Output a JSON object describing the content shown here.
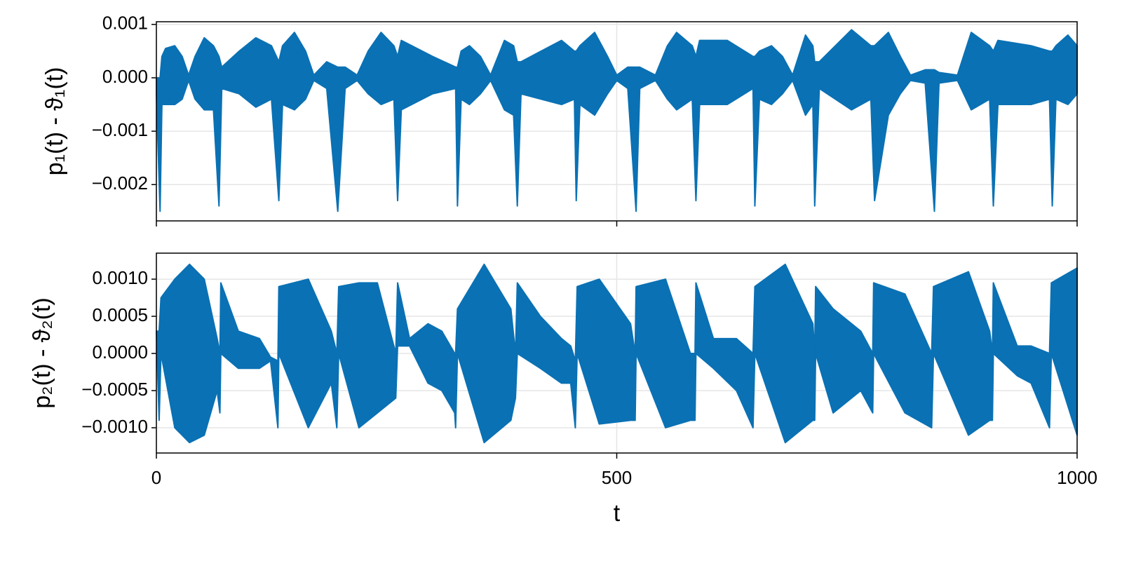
{
  "chart_data": [
    {
      "type": "band",
      "ylabel": "p₁(t) - ϑ₁(t)",
      "x": [
        0,
        4,
        6,
        10,
        20,
        28,
        35,
        42,
        52,
        62,
        68,
        71,
        90,
        108,
        125,
        133,
        137,
        150,
        162,
        171,
        185,
        197,
        205,
        218,
        230,
        244,
        258,
        262,
        266,
        300,
        325,
        327,
        331,
        340,
        352,
        363,
        378,
        388,
        392,
        396,
        440,
        454,
        456,
        460,
        476,
        490,
        500,
        512,
        521,
        525,
        542,
        555,
        565,
        582,
        586,
        590,
        620,
        648,
        650,
        655,
        668,
        680,
        691,
        705,
        713,
        715,
        720,
        755,
        776,
        780,
        795,
        808,
        819,
        835,
        845,
        850,
        870,
        885,
        905,
        909,
        914,
        950,
        970,
        973,
        977,
        990,
        1000
      ],
      "series": [
        {
          "color": "#0a71b4",
          "upper": [
            0.0,
            0.0,
            0.0004,
            0.00055,
            0.0006,
            0.0004,
            5e-05,
            0.0004,
            0.00075,
            0.0006,
            0.0004,
            0.0002,
            0.0005,
            0.00075,
            0.0006,
            0.0003,
            0.0006,
            0.00085,
            0.0005,
            5e-05,
            0.0003,
            0.0002,
            0.0002,
            5e-05,
            0.0005,
            0.00085,
            0.0006,
            0.0004,
            0.0007,
            0.0004,
            0.0002,
            0.0002,
            0.0005,
            0.0006,
            0.0004,
            5e-05,
            0.0007,
            0.0006,
            0.0003,
            0.0003,
            0.0007,
            0.0005,
            0.0005,
            0.0006,
            0.00085,
            0.0004,
            5e-05,
            0.0002,
            0.0002,
            0.0002,
            5e-05,
            0.0006,
            0.00085,
            0.0006,
            0.0004,
            0.0007,
            0.0007,
            0.0004,
            0.0004,
            0.0005,
            0.0006,
            0.0004,
            5e-05,
            0.0008,
            0.0006,
            0.0003,
            0.0003,
            0.0009,
            0.0006,
            0.0006,
            0.00085,
            0.0004,
            5e-05,
            0.00015,
            0.00015,
            0.0001,
            5e-05,
            0.00085,
            0.0006,
            0.0005,
            0.0007,
            0.0006,
            0.0005,
            0.0005,
            0.0006,
            0.0008,
            0.0006
          ],
          "lower": [
            -0.0003,
            -0.0025,
            -0.0005,
            -0.0005,
            -0.0005,
            -0.0004,
            -5e-05,
            -0.0004,
            -0.0006,
            -0.0006,
            -0.0024,
            -0.0002,
            -0.0003,
            -0.00055,
            -0.0004,
            -0.0023,
            -0.0005,
            -0.0006,
            -0.0004,
            -5e-05,
            -0.0002,
            -0.0025,
            -0.0002,
            -5e-05,
            -0.0003,
            -0.0005,
            -0.0004,
            -0.0023,
            -0.0006,
            -0.0003,
            -0.0002,
            -0.0024,
            -0.0004,
            -0.0005,
            -0.0003,
            -5e-05,
            -0.0006,
            -0.0007,
            -0.0024,
            -0.0003,
            -0.0005,
            -0.0004,
            -0.0023,
            -0.0005,
            -0.0007,
            -0.0003,
            -5e-05,
            -0.0002,
            -0.0025,
            -0.0002,
            -5e-05,
            -0.0004,
            -0.0006,
            -0.0004,
            -0.0023,
            -0.0005,
            -0.0005,
            -0.0002,
            -0.0024,
            -0.0004,
            -0.0005,
            -0.0003,
            -5e-05,
            -0.0007,
            -0.0005,
            -0.0024,
            -0.0002,
            -0.0006,
            -0.0004,
            -0.0023,
            -0.0007,
            -0.0003,
            -5e-05,
            -0.0001,
            -0.0025,
            -0.0001,
            -5e-05,
            -0.0006,
            -0.0004,
            -0.0024,
            -0.0005,
            -0.0005,
            -0.0004,
            -0.0024,
            -0.0004,
            -0.0005,
            -0.0003
          ]
        }
      ],
      "xlim": [
        0,
        1000
      ],
      "xticks": [
        0,
        500,
        1000
      ],
      "ylim": [
        -0.00268,
        0.00105
      ],
      "yticks": [
        {
          "value": 0.001,
          "label": "0.001"
        },
        {
          "value": 0,
          "label": "0.000"
        },
        {
          "value": -0.001,
          "label": "−0.001"
        },
        {
          "value": -0.002,
          "label": "−0.002"
        }
      ],
      "grid": true
    },
    {
      "type": "band",
      "ylabel": "p₂(t) - ϑ₂(t)",
      "xlabel": "t",
      "x": [
        0,
        3,
        5,
        20,
        36,
        52,
        66,
        69,
        70,
        89,
        112,
        124,
        132,
        133,
        165,
        190,
        196,
        198,
        220,
        240,
        260,
        262,
        275,
        295,
        310,
        324,
        325,
        327,
        356,
        385,
        390,
        392,
        417,
        440,
        450,
        455,
        457,
        481,
        515,
        520,
        521,
        553,
        580,
        585,
        586,
        605,
        630,
        648,
        650,
        683,
        713,
        715,
        716,
        735,
        765,
        778,
        779,
        813,
        842,
        844,
        882,
        905,
        908,
        909,
        935,
        950,
        970,
        972,
        1000
      ],
      "series": [
        {
          "color": "#0a71b4",
          "upper": [
            0.0003,
            0.0003,
            0.00075,
            0.001,
            0.0012,
            0.001,
            0.0002,
            0.0,
            0.00095,
            0.0003,
            0.0002,
            -5e-05,
            -0.0001,
            0.0009,
            0.001,
            0.0003,
            0.0,
            0.0009,
            0.00095,
            0.00095,
            0.0,
            0.00095,
            0.0002,
            0.0004,
            0.0003,
            0.0,
            0.0,
            0.0006,
            0.0012,
            0.0006,
            0.0,
            0.00095,
            0.0005,
            0.0002,
            0.0001,
            -0.0001,
            0.0009,
            0.001,
            0.0004,
            0.0,
            0.0009,
            0.001,
            0.0,
            0.0,
            0.00095,
            0.0002,
            0.0002,
            0.0,
            0.0009,
            0.0012,
            0.0004,
            0.0,
            0.0009,
            0.0006,
            0.0003,
            0.0,
            0.00095,
            0.0008,
            0.0,
            0.0009,
            0.0011,
            0.0003,
            0.0,
            0.00095,
            0.0001,
            0.0001,
            0.0,
            0.00095,
            0.00115
          ],
          "lower": [
            0.0003,
            -0.0009,
            0.0,
            -0.001,
            -0.0012,
            -0.0011,
            -0.0005,
            -0.0008,
            0.0,
            -0.0002,
            -0.0002,
            -0.0001,
            -0.001,
            0.0,
            -0.001,
            -0.0004,
            -0.001,
            0.0,
            -0.001,
            -0.0008,
            -0.0006,
            0.0001,
            0.0001,
            -0.0004,
            -0.0005,
            -0.0008,
            -0.001,
            0.0,
            -0.0012,
            -0.0009,
            -0.0006,
            0.0,
            -0.0002,
            -0.0004,
            -0.0004,
            -0.001,
            0.0,
            -0.00095,
            -0.0009,
            -0.0009,
            0.0,
            -0.001,
            -0.0009,
            -0.0009,
            0.0,
            -0.0002,
            -0.0005,
            -0.001,
            0.0,
            -0.0012,
            -0.0009,
            -0.0009,
            0.0,
            -0.0008,
            -0.0005,
            -0.0008,
            0.0,
            -0.0008,
            -0.001,
            0.0,
            -0.0011,
            -0.0009,
            -0.0009,
            0.0,
            -0.0003,
            -0.0004,
            -0.001,
            0.0,
            -0.0011
          ]
        }
      ],
      "xlim": [
        0,
        1000
      ],
      "xticks": [
        0,
        500,
        1000
      ],
      "ylim": [
        -0.00134,
        0.00135
      ],
      "yticks": [
        {
          "value": 0.001,
          "label": "0.0010"
        },
        {
          "value": 0.0005,
          "label": "0.0005"
        },
        {
          "value": 0,
          "label": "0.0000"
        },
        {
          "value": -0.0005,
          "label": "−0.0005"
        },
        {
          "value": -0.001,
          "label": "−0.0010"
        }
      ],
      "grid": true
    }
  ]
}
